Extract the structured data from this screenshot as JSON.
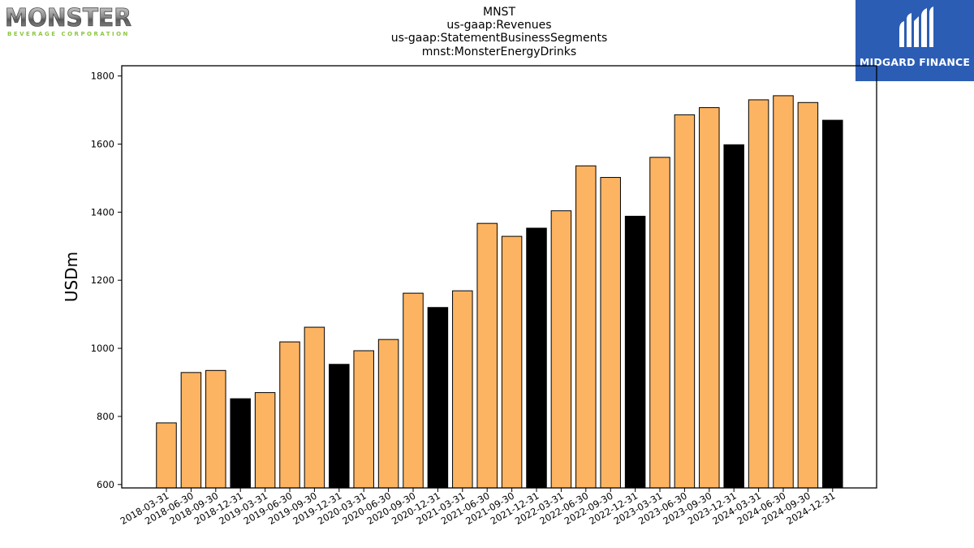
{
  "titles": {
    "line1": "MNST",
    "line2": "us-gaap:Revenues",
    "line3": "us-gaap:StatementBusinessSegments",
    "line4": "mnst:MonsterEnergyDrinks"
  },
  "logos": {
    "left_brand": "MONSTER",
    "left_tagline": "BEVERAGE CORPORATION",
    "right_brand": "MIDGARD FINANCE",
    "right_bg_color": "#2c5db4"
  },
  "colors": {
    "quarter_bar": "#fdb462",
    "year_end_bar": "#000000",
    "bar_edge": "#000000"
  },
  "chart_data": {
    "type": "bar",
    "ylabel": "USDm",
    "xlabel": "",
    "ylim": [
      590,
      1830
    ],
    "yticks": [
      600,
      800,
      1000,
      1200,
      1400,
      1600,
      1800
    ],
    "grid": false,
    "categories": [
      "2018-03-31",
      "2018-06-30",
      "2018-09-30",
      "2018-12-31",
      "2019-03-31",
      "2019-06-30",
      "2019-09-30",
      "2019-12-31",
      "2020-03-31",
      "2020-06-30",
      "2020-09-30",
      "2020-12-31",
      "2021-03-31",
      "2021-06-30",
      "2021-09-30",
      "2021-12-31",
      "2022-03-31",
      "2022-06-30",
      "2022-09-30",
      "2022-12-31",
      "2023-03-31",
      "2023-06-30",
      "2023-09-30",
      "2023-12-31",
      "2024-03-31",
      "2024-06-30",
      "2024-09-30",
      "2024-12-31"
    ],
    "values": [
      781,
      929,
      935,
      852,
      870,
      1019,
      1062,
      953,
      993,
      1026,
      1162,
      1120,
      1169,
      1367,
      1329,
      1353,
      1404,
      1536,
      1502,
      1388,
      1561,
      1686,
      1707,
      1598,
      1730,
      1742,
      1722,
      1670
    ]
  }
}
